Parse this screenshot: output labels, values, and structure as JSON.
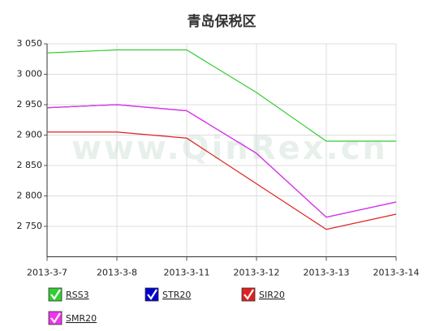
{
  "chart_data": {
    "type": "line",
    "title": "青岛保税区",
    "watermark": "www.QinRex.cn",
    "categories": [
      "2013-3-7",
      "2013-3-8",
      "2013-3-11",
      "2013-3-12",
      "2013-3-13",
      "2013-3-14"
    ],
    "series": [
      {
        "name": "RSS3",
        "color": "#33cc33",
        "values": [
          3035,
          3040,
          3040,
          2970,
          2890,
          2890
        ]
      },
      {
        "name": "STR20",
        "color": "#0000cc",
        "values": [
          2945,
          2950,
          2940,
          2870,
          2765,
          2790
        ]
      },
      {
        "name": "SIR20",
        "color": "#dd2222",
        "values": [
          2905,
          2905,
          2895,
          2820,
          2745,
          2770
        ]
      },
      {
        "name": "SMR20",
        "color": "#ee33ee",
        "values": [
          2945,
          2950,
          2940,
          2870,
          2765,
          2790
        ]
      }
    ],
    "ylim": [
      2700,
      3050
    ],
    "yticks": [
      {
        "value": 2750,
        "label": "2 750"
      },
      {
        "value": 2800,
        "label": "2 800"
      },
      {
        "value": 2850,
        "label": "2 850"
      },
      {
        "value": 2900,
        "label": "2 900"
      },
      {
        "value": 2950,
        "label": "2 950"
      },
      {
        "value": 3000,
        "label": "3 000"
      },
      {
        "value": 3050,
        "label": "3 050"
      }
    ],
    "grid": true
  }
}
